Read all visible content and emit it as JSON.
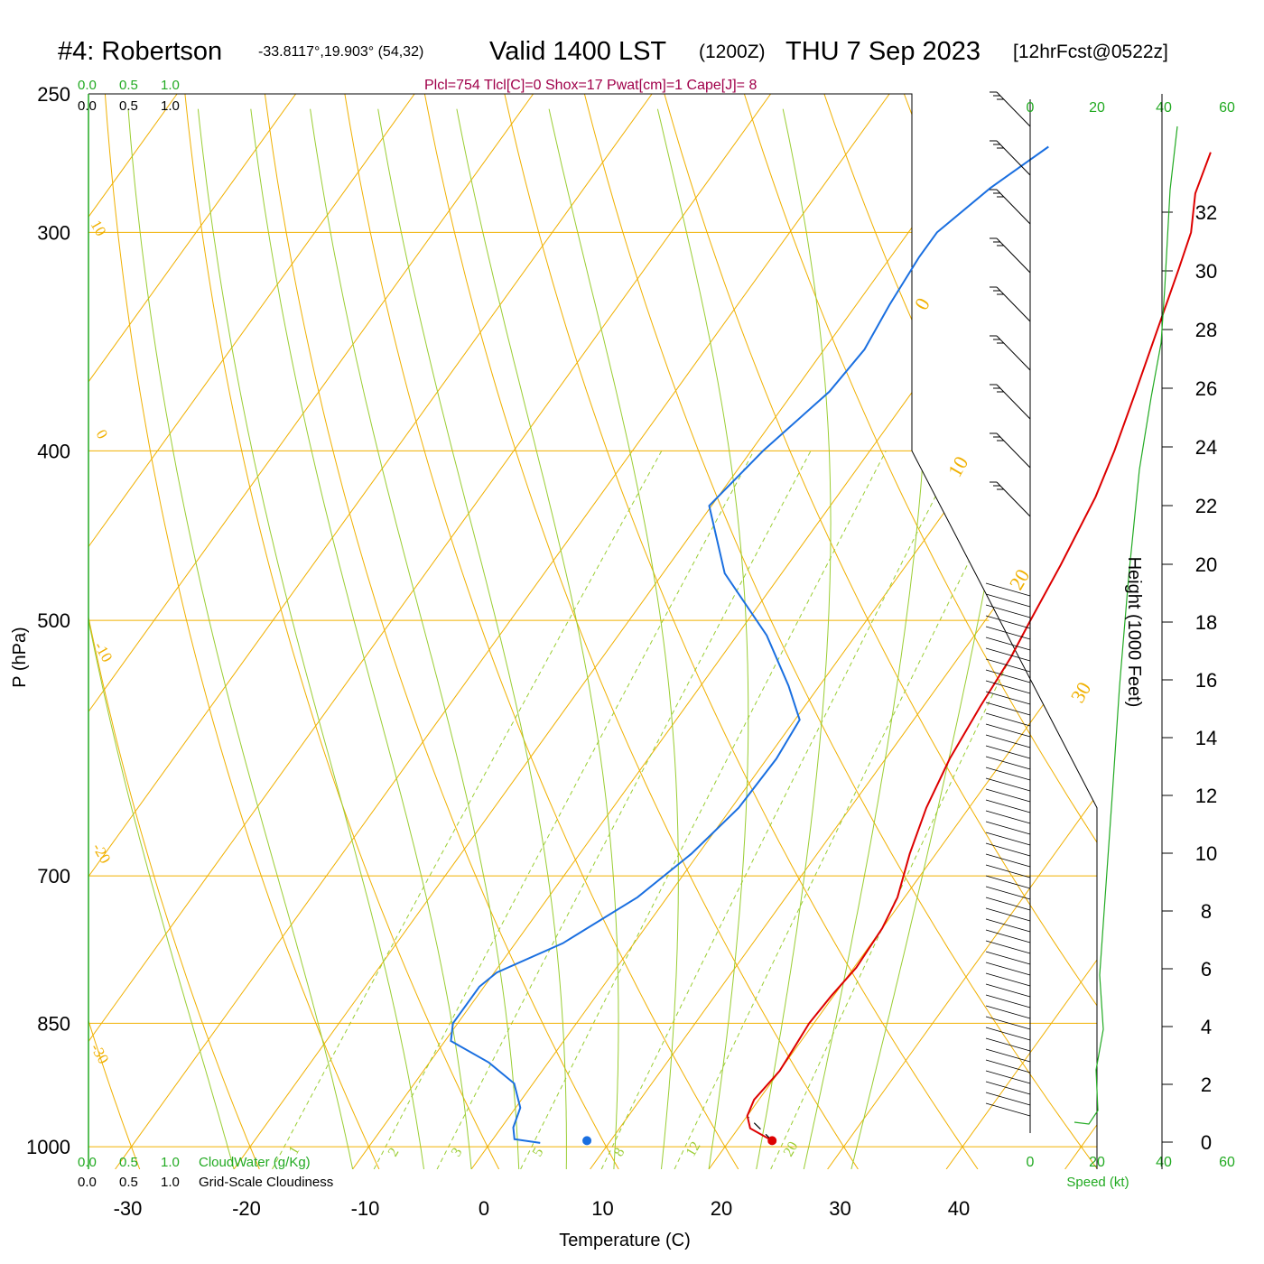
{
  "header": {
    "station": "#4: Robertson",
    "coords": "-33.8117°,19.903° (54,32)",
    "valid_prefix": "Valid 1400 LST",
    "valid_z": "(1200Z)",
    "valid_date": "THU 7 Sep 2023",
    "forecast": "[12hrFcst@0522z]",
    "indices": "Plcl=754 Tlcl[C]=0 Shox=17 Pwat[cm]=1 Cape[J]= 8"
  },
  "colors": {
    "temperature": "#dd0000",
    "dewpoint": "#1a6fe0",
    "isotherm": "#f0b000",
    "dry_adiabat": "#f0b000",
    "moist_adiabat": "#9acd32",
    "mixing_ratio": "#9acd32",
    "wind_profile": "#22aa22"
  },
  "chart_data": {
    "type": "line",
    "title": "#4: Robertson",
    "xlabel": "Temperature (C)",
    "ylabel": "P (hPa)",
    "y2label": "Height (1000 Feet)",
    "xlim": [
      -34,
      48
    ],
    "ylim": [
      1030,
      250
    ],
    "y_scale": "log",
    "x_ticks": [
      -30,
      -20,
      -10,
      0,
      10,
      20,
      30,
      40
    ],
    "pressure_ticks": [
      250,
      300,
      400,
      500,
      700,
      850,
      1000
    ],
    "height_ticks": [
      0,
      2,
      4,
      6,
      8,
      10,
      12,
      14,
      16,
      18,
      20,
      22,
      24,
      26,
      28,
      30,
      32
    ],
    "isotherm_labels": [
      "0",
      "10",
      "20",
      "30"
    ],
    "left_labels": [
      "10",
      "0",
      "-10",
      "-20",
      "-30"
    ],
    "mixing_ratio_labels": [
      "1",
      "2",
      "3",
      "5",
      "8",
      "12",
      "20"
    ],
    "series": [
      {
        "name": "Temperature",
        "points": [
          [
            23.6,
            992
          ],
          [
            21.0,
            976
          ],
          [
            20.0,
            960
          ],
          [
            19.6,
            940
          ],
          [
            20.0,
            905
          ],
          [
            19.8,
            875
          ],
          [
            19.6,
            850
          ],
          [
            19.8,
            820
          ],
          [
            20.2,
            790
          ],
          [
            20.0,
            750
          ],
          [
            19.4,
            720
          ],
          [
            17.8,
            680
          ],
          [
            16.4,
            640
          ],
          [
            15.4,
            600
          ],
          [
            14.8,
            560
          ],
          [
            14.4,
            525
          ],
          [
            13.8,
            500
          ],
          [
            13.0,
            465
          ],
          [
            11.8,
            425
          ],
          [
            10.6,
            400
          ],
          [
            8.8,
            370
          ],
          [
            6.8,
            340
          ],
          [
            5.0,
            315
          ],
          [
            3.8,
            300
          ],
          [
            1.8,
            285
          ],
          [
            0.6,
            270
          ]
        ]
      },
      {
        "name": "Dewpoint",
        "points": [
          [
            4.2,
            995
          ],
          [
            1.8,
            990
          ],
          [
            1.0,
            975
          ],
          [
            0.4,
            950
          ],
          [
            -1.6,
            920
          ],
          [
            -5.0,
            895
          ],
          [
            -9.5,
            870
          ],
          [
            -10.4,
            850
          ],
          [
            -10.4,
            810
          ],
          [
            -9.8,
            795
          ],
          [
            -6.0,
            765
          ],
          [
            -2.5,
            720
          ],
          [
            -0.6,
            680
          ],
          [
            0.6,
            640
          ],
          [
            0.8,
            600
          ],
          [
            0.4,
            570
          ],
          [
            -2.6,
            545
          ],
          [
            -7.5,
            510
          ],
          [
            -14.8,
            470
          ],
          [
            -20.2,
            430
          ],
          [
            -19.0,
            400
          ],
          [
            -17.0,
            370
          ],
          [
            -16.6,
            350
          ],
          [
            -17.2,
            330
          ],
          [
            -17.6,
            310
          ],
          [
            -17.6,
            300
          ],
          [
            -15.8,
            283
          ],
          [
            -13.4,
            268
          ]
        ]
      }
    ],
    "surface_parcel_temperature": 23.6,
    "surface_parcel_dewpoint": 8.0,
    "wind_speed_axis": {
      "label": "Speed (kt)",
      "ticks": [
        0,
        20,
        40,
        60
      ]
    },
    "cloud_axis": {
      "cloud_water_label": "CloudWater (g/Kg)",
      "cloudiness_label": "Grid-Scale Cloudiness",
      "ticks": [
        "0.0",
        "0.5",
        "1.0"
      ]
    }
  }
}
